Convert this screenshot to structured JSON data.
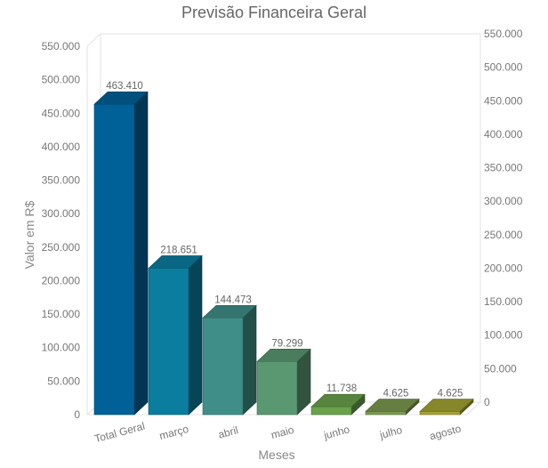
{
  "chart_data": {
    "type": "bar",
    "title": "Previsão Financeira Geral",
    "xlabel": "Meses",
    "ylabel": "Valor em R$",
    "categories": [
      "Total Geral",
      "março",
      "abril",
      "maio",
      "junho",
      "julho",
      "agosto"
    ],
    "values": [
      463410,
      218651,
      144473,
      79299,
      11738,
      4625,
      4625
    ],
    "value_labels": [
      "463.410",
      "218.651",
      "144.473",
      "79.299",
      "11.738",
      "4.625",
      "4.625"
    ],
    "ylim": [
      0,
      550000
    ],
    "yticks": [
      0,
      50000,
      100000,
      150000,
      200000,
      250000,
      300000,
      350000,
      400000,
      450000,
      500000,
      550000
    ],
    "ytick_labels": [
      "0",
      "50.000",
      "100.000",
      "150.000",
      "200.000",
      "250.000",
      "300.000",
      "350.000",
      "400.000",
      "450.000",
      "500.000",
      "550.000"
    ],
    "secondary_y_axis": true,
    "grid": false,
    "legend": "none",
    "style": "3d-bar",
    "colors": [
      "#006199",
      "#0b7ea0",
      "#3f8f88",
      "#5a9872",
      "#6aa24c",
      "#7c9a4f",
      "#a4a334"
    ]
  }
}
